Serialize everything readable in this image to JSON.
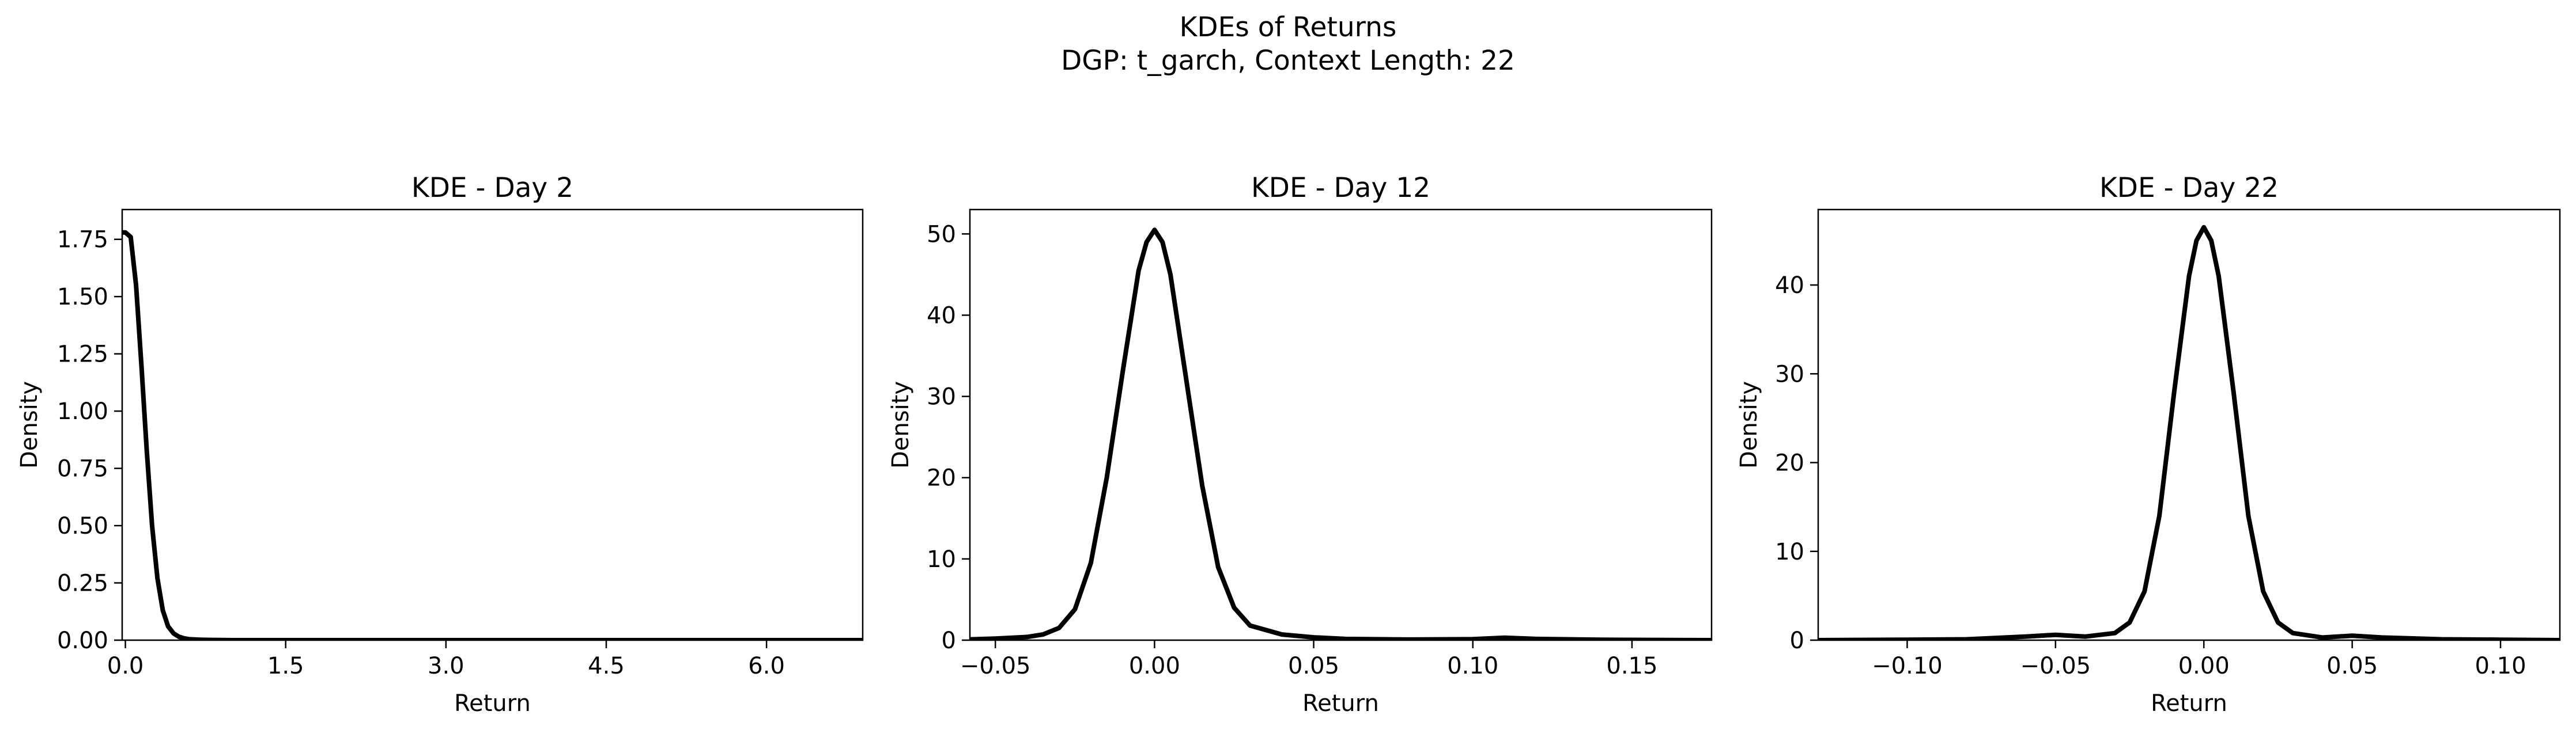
{
  "figure": {
    "suptitle_line1": "KDEs of Returns",
    "suptitle_line2": "DGP: t_garch, Context Length: 22"
  },
  "chart_data": [
    {
      "type": "line",
      "title": "KDE - Day 2",
      "xlabel": "Return",
      "ylabel": "Density",
      "xlim": [
        -0.03,
        6.9
      ],
      "ylim": [
        0,
        1.88
      ],
      "xticks": [
        0.0,
        1.5,
        3.0,
        4.5,
        6.0
      ],
      "xtick_labels": [
        "0.0",
        "1.5",
        "3.0",
        "4.5",
        "6.0"
      ],
      "yticks": [
        0.0,
        0.25,
        0.5,
        0.75,
        1.0,
        1.25,
        1.5,
        1.75
      ],
      "ytick_labels": [
        "0.00",
        "0.25",
        "0.50",
        "0.75",
        "1.00",
        "1.25",
        "1.50",
        "1.75"
      ],
      "grid": false,
      "series": [
        {
          "color": "#000000",
          "x": [
            -0.03,
            0.0,
            0.05,
            0.1,
            0.15,
            0.2,
            0.25,
            0.3,
            0.35,
            0.4,
            0.45,
            0.5,
            0.55,
            0.6,
            0.7,
            0.8,
            1.0,
            1.5,
            2.0,
            3.0,
            4.0,
            5.0,
            6.0,
            6.9
          ],
          "y": [
            1.78,
            1.78,
            1.76,
            1.55,
            1.2,
            0.83,
            0.5,
            0.27,
            0.13,
            0.06,
            0.03,
            0.015,
            0.008,
            0.004,
            0.002,
            0.001,
            0.0,
            0.0,
            0.0,
            0.0,
            0.0,
            0.0,
            0.0,
            0.0
          ]
        }
      ]
    },
    {
      "type": "line",
      "title": "KDE - Day 12",
      "xlabel": "Return",
      "ylabel": "Density",
      "xlim": [
        -0.058,
        0.175
      ],
      "ylim": [
        0,
        53
      ],
      "xticks": [
        -0.05,
        0.0,
        0.05,
        0.1,
        0.15
      ],
      "xtick_labels": [
        "−0.05",
        "0.00",
        "0.05",
        "0.10",
        "0.15"
      ],
      "yticks": [
        0,
        10,
        20,
        30,
        40,
        50
      ],
      "ytick_labels": [
        "0",
        "10",
        "20",
        "30",
        "40",
        "50"
      ],
      "grid": false,
      "series": [
        {
          "color": "#000000",
          "x": [
            -0.058,
            -0.05,
            -0.04,
            -0.035,
            -0.03,
            -0.025,
            -0.02,
            -0.015,
            -0.01,
            -0.005,
            -0.0025,
            0.0,
            0.0025,
            0.005,
            0.01,
            0.015,
            0.02,
            0.025,
            0.03,
            0.04,
            0.05,
            0.06,
            0.08,
            0.1,
            0.11,
            0.12,
            0.14,
            0.175
          ],
          "y": [
            0.1,
            0.2,
            0.4,
            0.7,
            1.5,
            3.8,
            9.5,
            20.0,
            33.0,
            45.5,
            49.0,
            50.5,
            49.0,
            45.0,
            32.0,
            19.0,
            9.0,
            4.0,
            1.8,
            0.7,
            0.35,
            0.15,
            0.08,
            0.12,
            0.3,
            0.15,
            0.05,
            0.0
          ]
        }
      ]
    },
    {
      "type": "line",
      "title": "KDE - Day 22",
      "xlabel": "Return",
      "ylabel": "Density",
      "xlim": [
        -0.13,
        0.12
      ],
      "ylim": [
        0,
        48.5
      ],
      "xticks": [
        -0.1,
        -0.05,
        0.0,
        0.05,
        0.1
      ],
      "xtick_labels": [
        "−0.10",
        "−0.05",
        "0.00",
        "0.05",
        "0.10"
      ],
      "yticks": [
        0,
        10,
        20,
        30,
        40
      ],
      "ytick_labels": [
        "0",
        "10",
        "20",
        "30",
        "40"
      ],
      "grid": false,
      "series": [
        {
          "color": "#000000",
          "x": [
            -0.13,
            -0.1,
            -0.08,
            -0.06,
            -0.05,
            -0.04,
            -0.03,
            -0.025,
            -0.02,
            -0.015,
            -0.01,
            -0.005,
            -0.0025,
            0.0,
            0.0025,
            0.005,
            0.01,
            0.015,
            0.02,
            0.025,
            0.03,
            0.04,
            0.05,
            0.06,
            0.08,
            0.1,
            0.12
          ],
          "y": [
            0.0,
            0.05,
            0.1,
            0.4,
            0.6,
            0.4,
            0.8,
            2.0,
            5.5,
            14.0,
            28.0,
            41.0,
            45.0,
            46.5,
            45.0,
            41.0,
            28.0,
            14.0,
            5.5,
            2.0,
            0.8,
            0.3,
            0.5,
            0.3,
            0.1,
            0.05,
            0.0
          ]
        }
      ]
    }
  ]
}
